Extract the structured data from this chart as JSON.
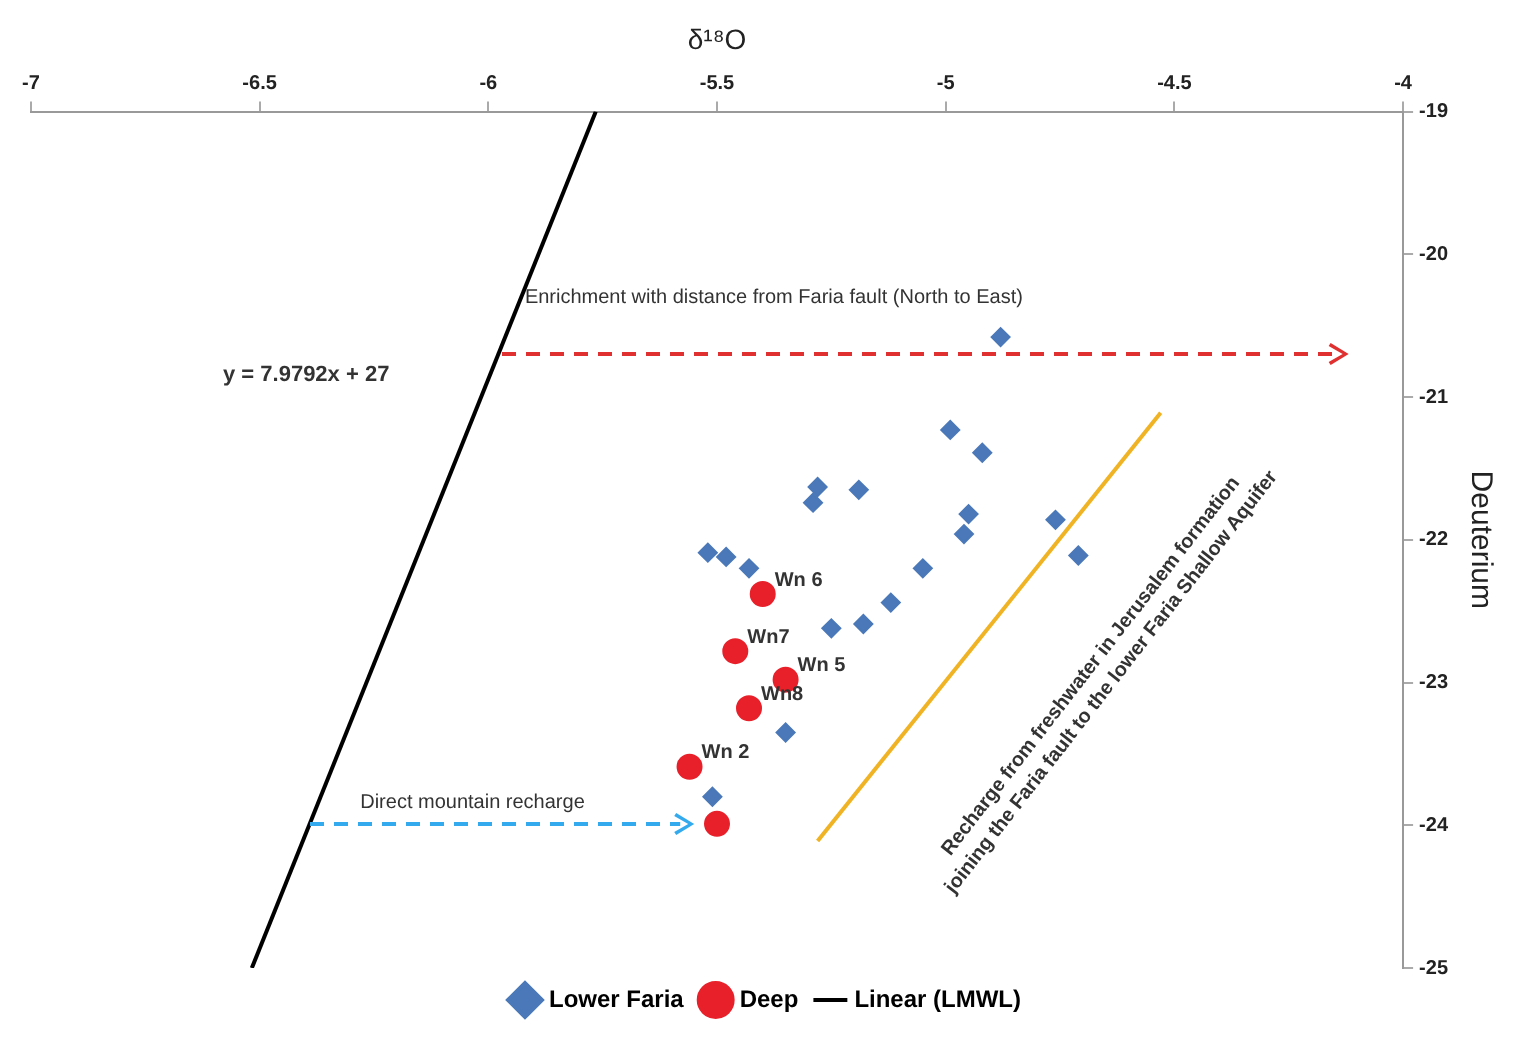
{
  "chart_data": {
    "type": "scatter",
    "xlabel": "δ¹⁸O",
    "ylabel": "Deuterium",
    "xlim": [
      -7,
      -4
    ],
    "xticks": [
      -7,
      -6.5,
      -6,
      -5.5,
      -5,
      -4.5,
      -4
    ],
    "ylim": [
      -25,
      -19
    ],
    "yticks": [
      -25,
      -24,
      -23,
      -22,
      -21,
      -20,
      -19
    ],
    "grid": false,
    "legend": "bottom",
    "series": [
      {
        "name": "Lower Faria",
        "type": "scatter",
        "marker": "diamond",
        "color": "#4a78b8",
        "x": [
          -4.88,
          -4.99,
          -4.92,
          -5.28,
          -5.29,
          -5.19,
          -4.95,
          -4.96,
          -4.76,
          -4.71,
          -5.52,
          -5.48,
          -5.43,
          -5.05,
          -5.12,
          -5.25,
          -5.18,
          -5.35,
          -5.51
        ],
        "values": [
          -20.58,
          -21.23,
          -21.39,
          -21.63,
          -21.74,
          -21.65,
          -21.82,
          -21.96,
          -21.86,
          -22.11,
          -22.09,
          -22.12,
          -22.2,
          -22.2,
          -22.44,
          -22.62,
          -22.59,
          -23.35,
          -23.8
        ]
      },
      {
        "name": "Deep",
        "type": "scatter",
        "marker": "circle",
        "color": "#e8202a",
        "x": [
          -5.4,
          -5.46,
          -5.35,
          -5.43,
          -5.56,
          -5.5
        ],
        "values": [
          -22.38,
          -22.78,
          -22.98,
          -23.18,
          -23.59,
          -23.99
        ]
      },
      {
        "name": "Linear (LMWL)",
        "type": "line",
        "marker": "none",
        "line_style": "solid",
        "color": "#000000",
        "x": [
          -6.517,
          -5.765
        ],
        "values": [
          -25,
          -19
        ]
      },
      {
        "type": "line",
        "marker": "none",
        "line_style": "solid",
        "color": "#f0b323",
        "x": [
          -5.28,
          -4.53
        ],
        "values": [
          -24.11,
          -21.11
        ]
      }
    ],
    "annotations": [
      "y = 7.9792x + 27",
      "Enrichment with distance from Faria fault (North to East)",
      "Direct mountain recharge",
      "Recharge from freshwater in Jerusalem formation\njoining the Faria fault to the lower Faria Shallow Aquifer",
      {
        "text": "Wn 6",
        "x": -5.4,
        "y": -22.38
      },
      {
        "text": "Wn7",
        "x": -5.46,
        "y": -22.78
      },
      {
        "text": "Wn 5",
        "x": -5.35,
        "y": -22.98
      },
      {
        "text": "Wn8",
        "x": -5.43,
        "y": -23.18
      },
      {
        "text": "Wn 2",
        "x": -5.56,
        "y": -23.59
      }
    ]
  }
}
